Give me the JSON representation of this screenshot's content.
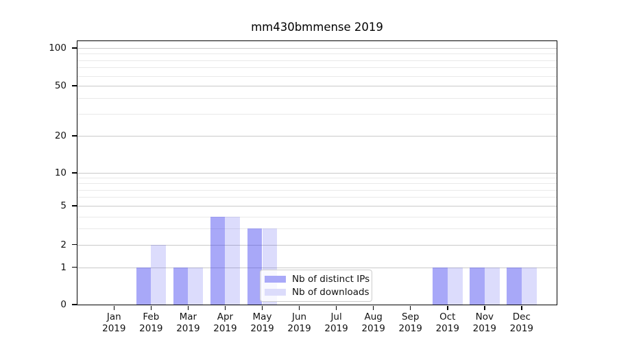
{
  "title": "mm430bmmense 2019",
  "chart_data": {
    "type": "bar",
    "title": "mm430bmmense 2019",
    "categories": [
      "Jan 2019",
      "Feb 2019",
      "Mar 2019",
      "Apr 2019",
      "May 2019",
      "Jun 2019",
      "Jul 2019",
      "Aug 2019",
      "Sep 2019",
      "Oct 2019",
      "Nov 2019",
      "Dec 2019"
    ],
    "series": [
      {
        "name": "Nb of distinct IPs",
        "values": [
          0,
          1,
          1,
          4,
          3,
          0,
          0,
          0,
          0,
          1,
          1,
          1
        ],
        "fill": "rgba(62,62,240,0.45)",
        "swatch": "#a9a9f8"
      },
      {
        "name": "Nb of downloads",
        "values": [
          0,
          2,
          1,
          4,
          3,
          0,
          0,
          0,
          0,
          1,
          1,
          1
        ],
        "fill": "rgba(62,62,240,0.18)",
        "swatch": "#dcdcfb"
      }
    ],
    "yscale": "symlog",
    "ylim": [
      0,
      113
    ],
    "yticks": [
      0,
      1,
      2,
      5,
      10,
      20,
      50,
      100
    ],
    "yticks_minor": [
      3,
      4,
      6,
      7,
      8,
      9,
      30,
      40,
      60,
      70,
      80,
      90
    ],
    "xlabel": "",
    "ylabel": "",
    "grid": "horizontal major and minor",
    "legend_position": "lower center"
  },
  "legend": {
    "items": [
      {
        "label": "Nb of distinct IPs"
      },
      {
        "label": "Nb of downloads"
      }
    ]
  },
  "colors": {
    "grid_major": "#c9c9c9",
    "grid_minor": "#e9e9e9",
    "spine": "#000000",
    "text": "#111111"
  }
}
